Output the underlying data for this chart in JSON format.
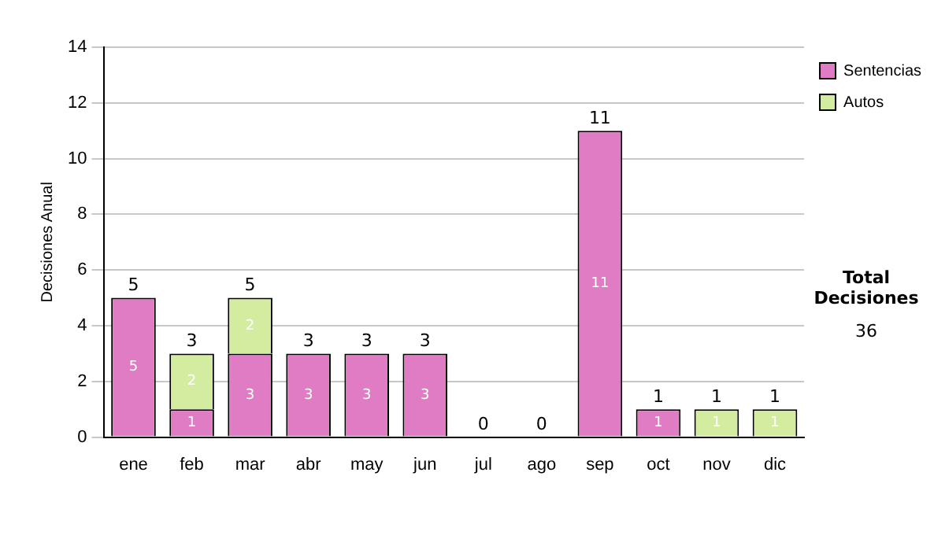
{
  "chart_data": {
    "type": "bar",
    "stacked": true,
    "ylabel": "Decisiones Anual",
    "categories": [
      "ene",
      "feb",
      "mar",
      "abr",
      "may",
      "jun",
      "jul",
      "ago",
      "sep",
      "oct",
      "nov",
      "dic"
    ],
    "series": [
      {
        "name": "Sentencias",
        "color": "#e07cc4",
        "values": [
          5,
          1,
          3,
          3,
          3,
          3,
          0,
          0,
          11,
          1,
          0,
          0
        ],
        "value_labels": [
          "5",
          "1",
          "3",
          "3",
          "3",
          "3",
          null,
          null,
          "11",
          "1",
          null,
          null
        ]
      },
      {
        "name": "Autos",
        "color": "#d4eca0",
        "values": [
          0,
          2,
          2,
          0,
          0,
          0,
          0,
          0,
          0,
          0,
          1,
          1
        ],
        "value_labels": [
          null,
          "2",
          "2",
          null,
          null,
          null,
          null,
          null,
          null,
          null,
          "1",
          "1"
        ]
      }
    ],
    "ylim": [
      0,
      14
    ],
    "yticks": [
      0,
      2,
      4,
      6,
      8,
      10,
      12,
      14
    ],
    "grid": "y",
    "legend": "right",
    "totals": [
      "5",
      "3",
      "5",
      "3",
      "3",
      "3",
      "0",
      "0",
      "11",
      "1",
      "1",
      "1"
    ],
    "annotations": [
      "Total Decisiones",
      "36"
    ]
  }
}
